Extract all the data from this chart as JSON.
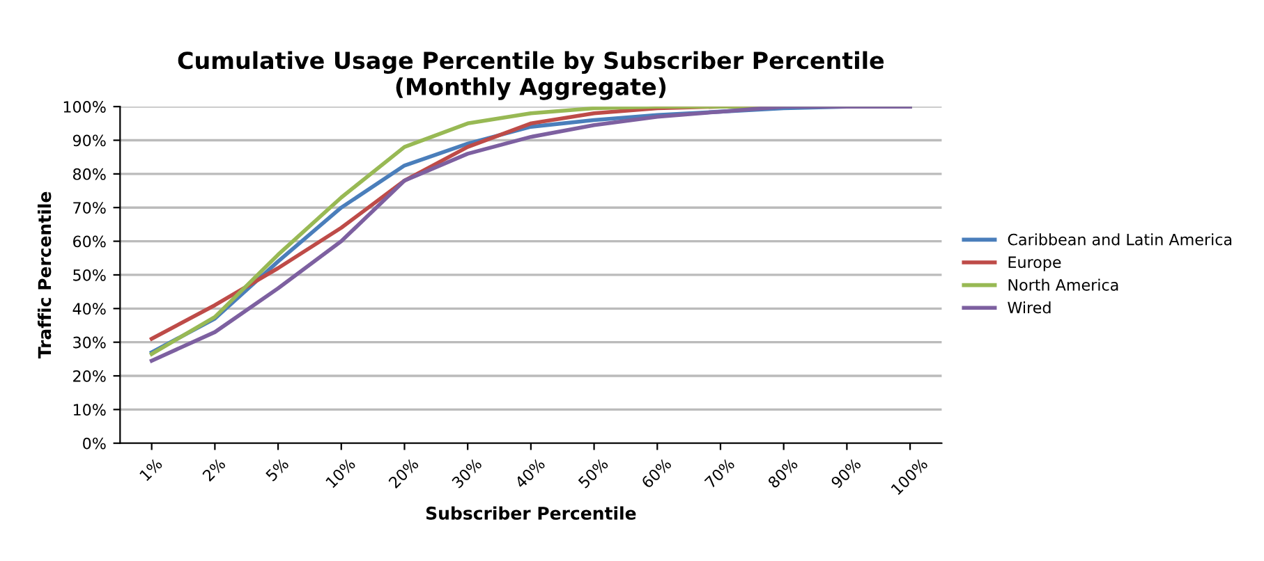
{
  "chart_data": {
    "type": "line",
    "title": "Cumulative Usage Percentile by Subscriber Percentile\n(Monthly Aggregate)",
    "xlabel": "Subscriber Percentile",
    "ylabel": "Traffic Percentile",
    "categories": [
      "1%",
      "2%",
      "5%",
      "10%",
      "20%",
      "30%",
      "40%",
      "50%",
      "60%",
      "70%",
      "80%",
      "90%",
      "100%"
    ],
    "series": [
      {
        "name": "Caribbean and Latin America",
        "color": "#4a7ebb",
        "values": [
          27,
          37,
          54,
          70,
          82.5,
          89,
          94,
          96,
          97.5,
          98.5,
          99.5,
          100,
          100
        ]
      },
      {
        "name": "Europe",
        "color": "#be4b48",
        "values": [
          31,
          41,
          52,
          64,
          78,
          88,
          95,
          98,
          99.5,
          100,
          100,
          null,
          null
        ]
      },
      {
        "name": "North America",
        "color": "#98b954",
        "values": [
          26.5,
          37.5,
          56,
          73,
          88,
          95,
          98,
          99.5,
          100,
          100,
          100,
          100,
          100
        ]
      },
      {
        "name": "Wired",
        "color": "#7d60a0",
        "values": [
          24.5,
          33,
          46,
          60,
          78,
          86,
          91,
          94.5,
          97,
          98.5,
          100,
          100,
          100
        ]
      }
    ],
    "ylim": [
      0,
      100
    ],
    "yticks": [
      {
        "value": 0,
        "label": "0%"
      },
      {
        "value": 10,
        "label": "10%"
      },
      {
        "value": 20,
        "label": "20%"
      },
      {
        "value": 30,
        "label": "30%"
      },
      {
        "value": 40,
        "label": "40%"
      },
      {
        "value": 50,
        "label": "50%"
      },
      {
        "value": 60,
        "label": "60%"
      },
      {
        "value": 70,
        "label": "70%"
      },
      {
        "value": 80,
        "label": "80%"
      },
      {
        "value": 90,
        "label": "90%"
      },
      {
        "value": 100,
        "label": "100%"
      }
    ],
    "grid": "y",
    "legend": "right",
    "marker": "none",
    "line_style": "solid"
  }
}
